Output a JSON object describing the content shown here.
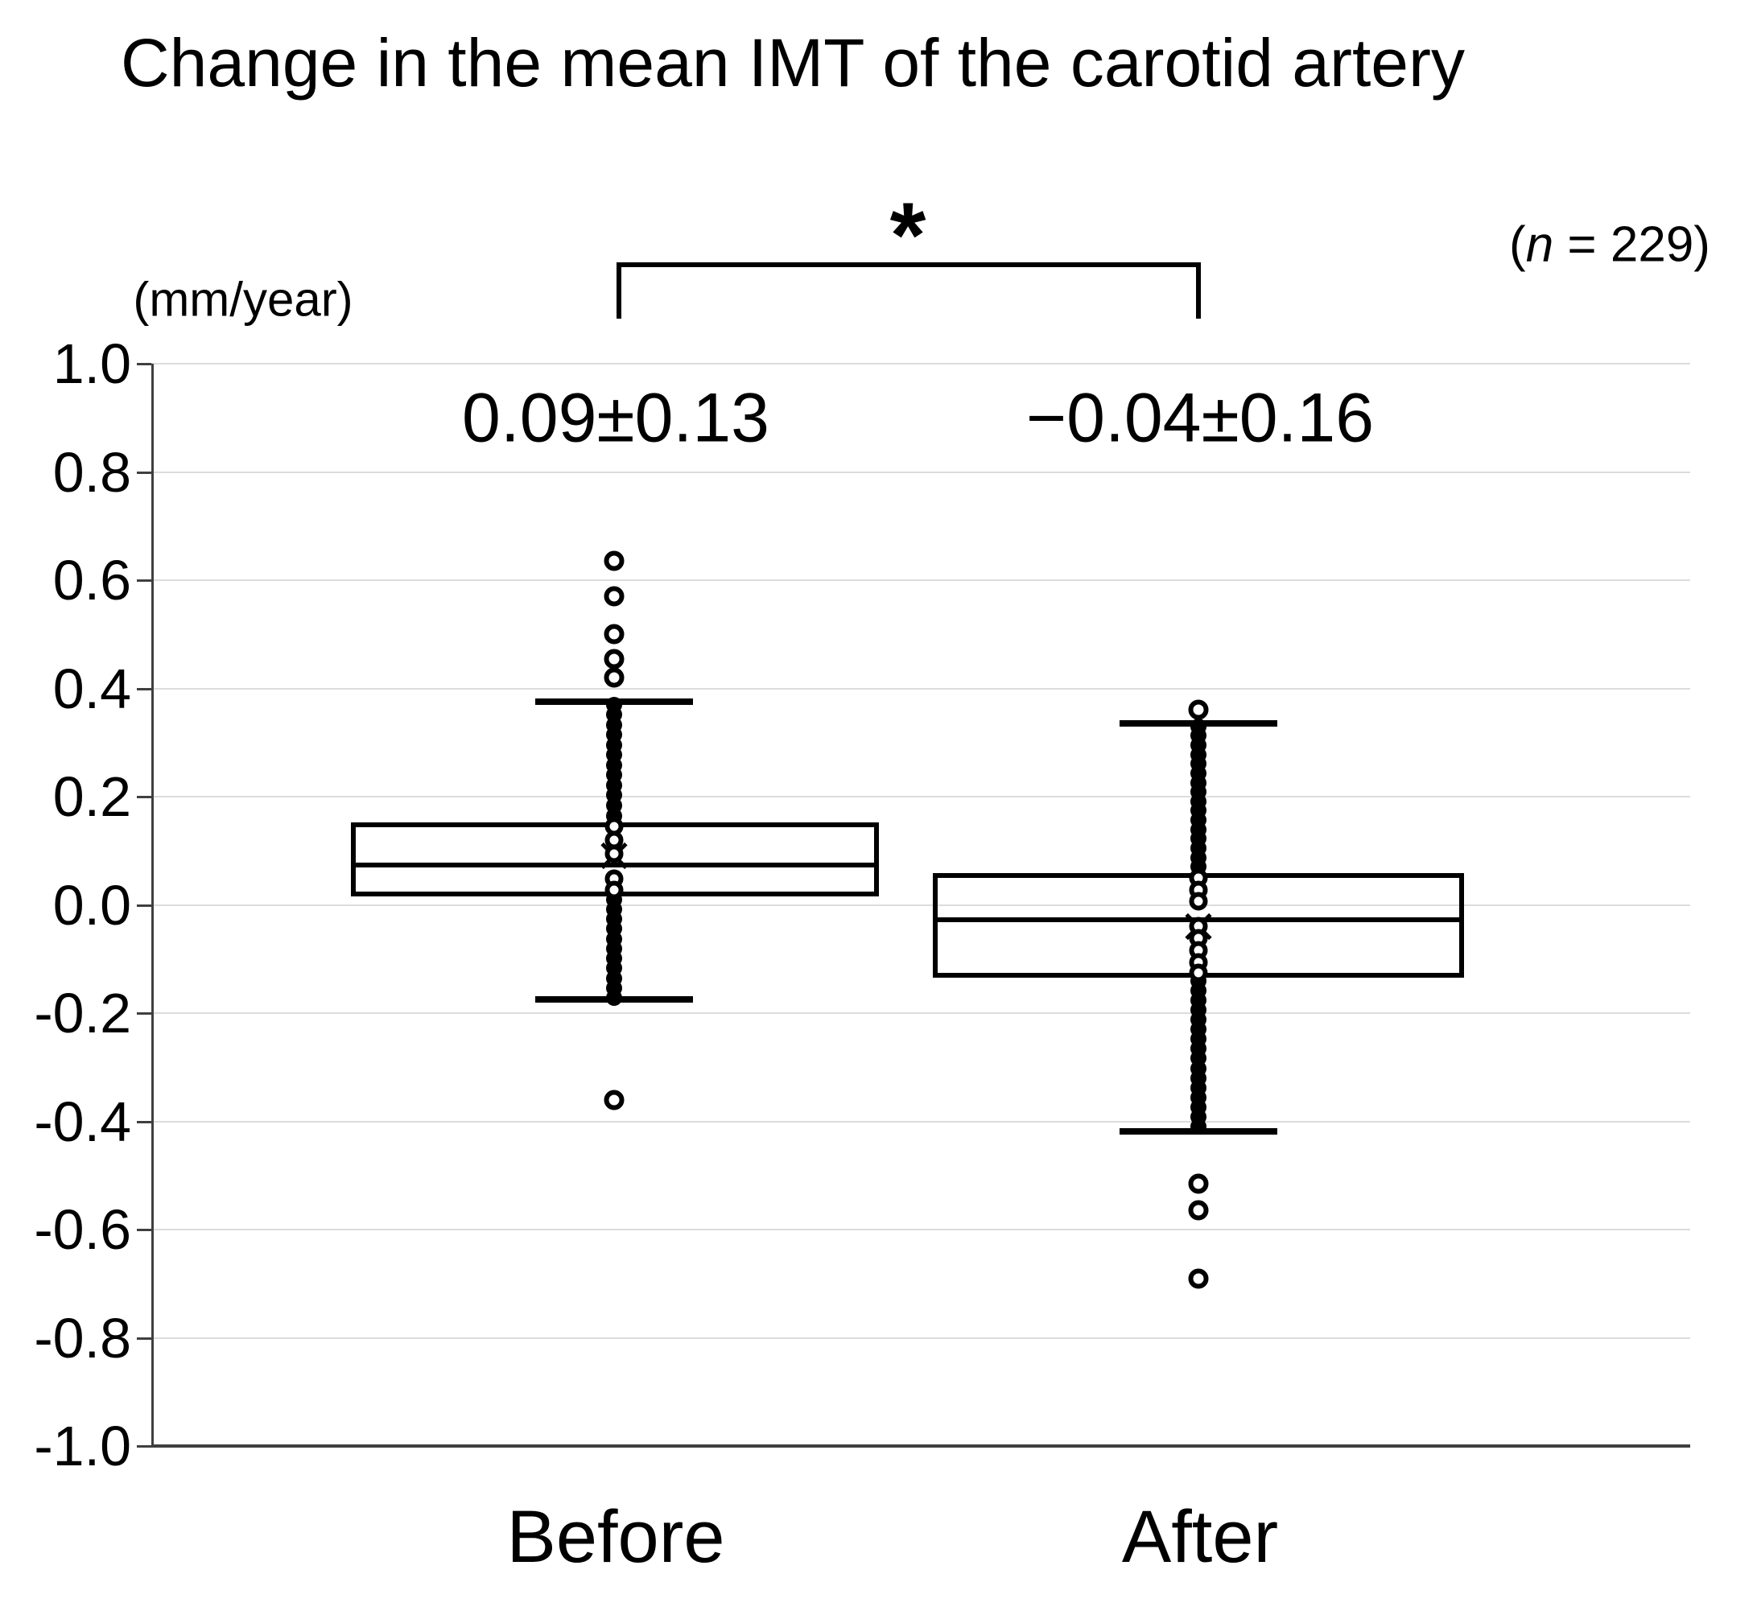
{
  "title": "Change in the mean IMT of the carotid artery",
  "unit_label": "(mm/year)",
  "sample_size": {
    "open": "(",
    "var": "n",
    "rest": " = 229)"
  },
  "colors": {
    "ink": "#000000",
    "grid": "#dcdcdc",
    "axis": "#3f3f3f",
    "background": "#ffffff"
  },
  "chart_data": {
    "type": "box",
    "title": "Change in the mean IMT of the carotid artery",
    "ylabel": "(mm/year)",
    "xlabel": "",
    "ylim": [
      -1.0,
      1.0
    ],
    "yticks": [
      "1.0",
      "0.8",
      "0.6",
      "0.4",
      "0.2",
      "0.0",
      "-0.2",
      "-0.4",
      "-0.6",
      "-0.8",
      "-1.0"
    ],
    "ytick_values": [
      1.0,
      0.8,
      0.6,
      0.4,
      0.2,
      0.0,
      -0.2,
      -0.4,
      -0.6,
      -0.8,
      -1.0
    ],
    "grid": true,
    "n": 229,
    "categories": [
      "Before",
      "After"
    ],
    "significance": {
      "symbol": "*",
      "between": [
        "Before",
        "After"
      ]
    },
    "groups": [
      {
        "name": "Before",
        "annotation": "0.09±0.13",
        "mean": 0.09,
        "sd": 0.13,
        "median": 0.073,
        "q1": 0.016,
        "q3": 0.152,
        "whisker_high": 0.375,
        "whisker_low": -0.175,
        "outliers_high": [
          0.635,
          0.57,
          0.5,
          0.455,
          0.42
        ],
        "outliers_low": [
          -0.36
        ],
        "strip_filled": [
          [
            0.37,
            0.165
          ],
          [
            0.01,
            -0.172
          ]
        ],
        "strip_rings": [
          0.145,
          0.12,
          0.095,
          0.048,
          0.027
        ]
      },
      {
        "name": "After",
        "annotation": "−0.04±0.16",
        "mean": -0.04,
        "sd": 0.16,
        "median": -0.028,
        "q1": -0.135,
        "q3": 0.058,
        "whisker_high": 0.335,
        "whisker_low": -0.418,
        "outliers_high": [
          0.36
        ],
        "outliers_low": [
          -0.515,
          -0.565,
          -0.69
        ],
        "strip_filled": [
          [
            0.33,
            0.07
          ],
          [
            -0.14,
            -0.41
          ]
        ],
        "strip_rings": [
          0.05,
          0.028,
          0.006,
          -0.04,
          -0.062,
          -0.084,
          -0.106,
          -0.126
        ]
      }
    ]
  }
}
